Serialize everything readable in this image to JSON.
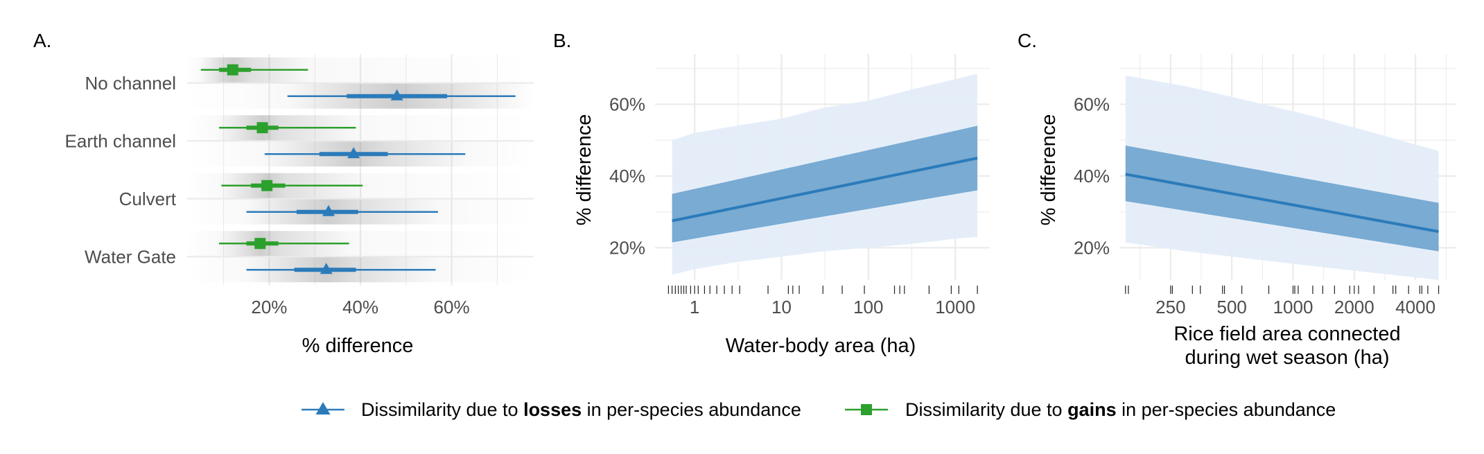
{
  "colors": {
    "losses": "#2b7bba",
    "gains": "#2ca02c",
    "ribbon_inner": "#79abd3",
    "ribbon_outer": "#e3edf7",
    "grid": "#ebebeb"
  },
  "chart_data": [
    {
      "panel": "A.",
      "type": "interval",
      "xlabel": "% difference",
      "xlim": [
        0.02,
        0.78
      ],
      "xticks": [
        0.2,
        0.4,
        0.6
      ],
      "xtick_labels": [
        "20%",
        "40%",
        "60%"
      ],
      "categories": [
        "No channel",
        "Earth channel",
        "Culvert",
        "Water Gate"
      ],
      "series": [
        {
          "name": "losses",
          "marker": "triangle",
          "points": [
            {
              "category": "No channel",
              "estimate": 0.48,
              "inner": [
                0.37,
                0.59
              ],
              "outer": [
                0.24,
                0.74
              ]
            },
            {
              "category": "Earth channel",
              "estimate": 0.385,
              "inner": [
                0.31,
                0.46
              ],
              "outer": [
                0.19,
                0.63
              ]
            },
            {
              "category": "Culvert",
              "estimate": 0.33,
              "inner": [
                0.26,
                0.395
              ],
              "outer": [
                0.15,
                0.57
              ]
            },
            {
              "category": "Water Gate",
              "estimate": 0.325,
              "inner": [
                0.255,
                0.39
              ],
              "outer": [
                0.15,
                0.565
              ]
            }
          ]
        },
        {
          "name": "gains",
          "marker": "square",
          "points": [
            {
              "category": "No channel",
              "estimate": 0.12,
              "inner": [
                0.09,
                0.16
              ],
              "outer": [
                0.05,
                0.285
              ]
            },
            {
              "category": "Earth channel",
              "estimate": 0.185,
              "inner": [
                0.15,
                0.22
              ],
              "outer": [
                0.09,
                0.39
              ]
            },
            {
              "category": "Culvert",
              "estimate": 0.195,
              "inner": [
                0.16,
                0.235
              ],
              "outer": [
                0.095,
                0.405
              ]
            },
            {
              "category": "Water Gate",
              "estimate": 0.18,
              "inner": [
                0.15,
                0.22
              ],
              "outer": [
                0.09,
                0.375
              ]
            }
          ]
        }
      ]
    },
    {
      "panel": "B.",
      "type": "line",
      "xscale": "log",
      "xlabel": "Water-body area (ha)",
      "ylabel": "% difference",
      "xlim": [
        0.35,
        2500
      ],
      "ylim": [
        0.11,
        0.74
      ],
      "xticks": [
        1,
        10,
        100,
        1000
      ],
      "xtick_labels": [
        "1",
        "10",
        "100",
        "1000"
      ],
      "yticks": [
        0.2,
        0.4,
        0.6
      ],
      "ytick_labels": [
        "20%",
        "40%",
        "60%"
      ],
      "line": {
        "x": [
          0.55,
          1800
        ],
        "y": [
          0.275,
          0.45
        ]
      },
      "inner_ribbon": {
        "x": [
          0.55,
          1800
        ],
        "lower": [
          0.215,
          0.36
        ],
        "upper": [
          0.35,
          0.54
        ]
      },
      "outer_ribbon": {
        "x": [
          0.55,
          1,
          3,
          10,
          30,
          100,
          300,
          1000,
          1800
        ],
        "lower": [
          0.125,
          0.14,
          0.16,
          0.175,
          0.19,
          0.2,
          0.21,
          0.225,
          0.23
        ],
        "upper": [
          0.5,
          0.52,
          0.54,
          0.56,
          0.59,
          0.61,
          0.64,
          0.67,
          0.685
        ]
      },
      "rug": [
        0.5,
        0.55,
        0.6,
        0.65,
        0.7,
        0.75,
        0.8,
        0.9,
        1.0,
        1.1,
        1.3,
        1.5,
        1.8,
        2.2,
        2.7,
        3.3,
        7,
        12,
        13.5,
        16,
        30,
        50,
        90,
        200,
        230,
        260,
        500,
        900,
        1100,
        1800
      ]
    },
    {
      "panel": "C.",
      "type": "line",
      "xscale": "log",
      "xlabel": [
        "Rice field area connected",
        "during wet season (ha)"
      ],
      "ylabel": "% difference",
      "xlim": [
        140,
        6300
      ],
      "ylim": [
        0.11,
        0.74
      ],
      "xticks": [
        250,
        500,
        1000,
        2000,
        4000
      ],
      "xtick_labels": [
        "250",
        "500",
        "1000",
        "2000",
        "4000"
      ],
      "yticks": [
        0.2,
        0.4,
        0.6
      ],
      "ytick_labels": [
        "20%",
        "40%",
        "60%"
      ],
      "line": {
        "x": [
          150,
          5200
        ],
        "y": [
          0.405,
          0.245
        ]
      },
      "inner_ribbon": {
        "x": [
          150,
          5200
        ],
        "lower": [
          0.33,
          0.19
        ],
        "upper": [
          0.485,
          0.325
        ]
      },
      "outer_ribbon": {
        "x": [
          150,
          300,
          600,
          1200,
          2500,
          5200
        ],
        "lower": [
          0.215,
          0.19,
          0.17,
          0.15,
          0.13,
          0.11
        ],
        "upper": [
          0.68,
          0.65,
          0.61,
          0.57,
          0.52,
          0.47
        ]
      },
      "rug": [
        150,
        155,
        250,
        255,
        320,
        350,
        450,
        460,
        560,
        760,
        1000,
        1020,
        1060,
        1250,
        1400,
        1600,
        1900,
        2000,
        2100,
        2500,
        3100,
        3200,
        3700,
        4200,
        4300,
        4600,
        5200
      ]
    }
  ],
  "legend": [
    {
      "series": "losses",
      "prefix": "Dissimilarity due to ",
      "bold": "losses",
      "suffix": " in per-species abundance"
    },
    {
      "series": "gains",
      "prefix": "Dissimilarity due to ",
      "bold": "gains",
      "suffix": " in per-species abundance"
    }
  ]
}
